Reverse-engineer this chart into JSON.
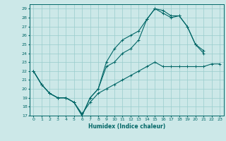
{
  "xlabel": "Humidex (Indice chaleur)",
  "bg_color": "#cce8e8",
  "grid_color": "#99cccc",
  "line_color": "#006666",
  "xlim": [
    -0.5,
    23.5
  ],
  "ylim": [
    17,
    29.5
  ],
  "xticks": [
    0,
    1,
    2,
    3,
    4,
    5,
    6,
    7,
    8,
    9,
    10,
    11,
    12,
    13,
    14,
    15,
    16,
    17,
    18,
    19,
    20,
    21,
    22,
    23
  ],
  "yticks": [
    17,
    18,
    19,
    20,
    21,
    22,
    23,
    24,
    25,
    26,
    27,
    28,
    29
  ],
  "line1": {
    "x": [
      0,
      1,
      2,
      3,
      4,
      5,
      6,
      7,
      8,
      9,
      10,
      11,
      12,
      13,
      14,
      15,
      16,
      17,
      18,
      19,
      20,
      21
    ],
    "y": [
      22,
      20.5,
      19.5,
      19,
      19,
      18.5,
      17,
      19,
      20,
      23,
      24.5,
      25.5,
      26.0,
      26.5,
      27.8,
      29.0,
      28.8,
      28.2,
      28.2,
      27.0,
      25.0,
      24.0
    ]
  },
  "line2": {
    "x": [
      0,
      1,
      2,
      3,
      4,
      5,
      6,
      7,
      8,
      9,
      10,
      11,
      12,
      13,
      14,
      15,
      16,
      17,
      18,
      19,
      20,
      21
    ],
    "y": [
      22,
      20.5,
      19.5,
      19,
      19,
      18.5,
      17,
      19,
      20,
      22.5,
      23.0,
      24.0,
      24.5,
      25.5,
      27.8,
      29.0,
      28.5,
      28.0,
      28.2,
      27.0,
      25.0,
      24.3
    ]
  },
  "line3": {
    "x": [
      0,
      1,
      2,
      3,
      4,
      5,
      6,
      7,
      8,
      9,
      10,
      11,
      12,
      13,
      14,
      15,
      16,
      17,
      18,
      19,
      20,
      21,
      22,
      23
    ],
    "y": [
      22,
      20.5,
      19.5,
      19.0,
      19.0,
      18.5,
      17.2,
      18.5,
      19.5,
      20.0,
      20.5,
      21.0,
      21.5,
      22.0,
      22.5,
      23.0,
      22.5,
      22.5,
      22.5,
      22.5,
      22.5,
      22.5,
      22.8,
      22.8
    ]
  }
}
